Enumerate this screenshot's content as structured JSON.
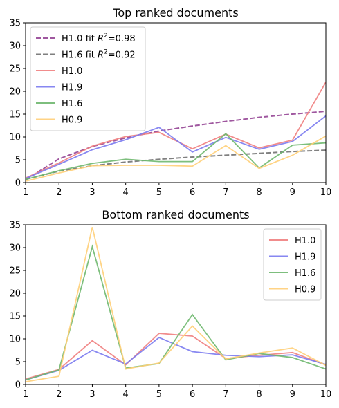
{
  "chart_data": [
    {
      "type": "line",
      "title": "Top ranked documents",
      "xlabel": "",
      "ylabel": "",
      "xlim": [
        1,
        10
      ],
      "ylim": [
        0,
        35
      ],
      "xticks": [
        1,
        2,
        3,
        4,
        5,
        6,
        7,
        8,
        9,
        10
      ],
      "yticks": [
        0,
        5,
        10,
        15,
        20,
        25,
        30,
        35
      ],
      "grid": false,
      "legend": "top-left",
      "x": [
        1,
        2,
        3,
        4,
        5,
        6,
        7,
        8,
        9,
        10
      ],
      "fits": [
        {
          "name": "H1.0 fit R²=0.98",
          "name_prefix": "H1.0 fit ",
          "r2_value": "=0.98",
          "color": "#7f1f7f",
          "style": "dashed",
          "values": [
            0.6,
            5.2,
            7.9,
            9.8,
            11.3,
            12.4,
            13.4,
            14.3,
            15.0,
            15.6
          ]
        },
        {
          "name": "H1.6 fit R²=0.92",
          "name_prefix": "H1.6 fit ",
          "r2_value": "=0.92",
          "color": "#555555",
          "style": "dashed",
          "values": [
            0.7,
            2.5,
            3.7,
            4.5,
            5.1,
            5.6,
            6.0,
            6.4,
            6.8,
            7.1
          ]
        }
      ],
      "series": [
        {
          "name": "H1.0",
          "color": "#f08080",
          "values": [
            1.0,
            4.3,
            8.0,
            10.1,
            11.0,
            7.4,
            10.6,
            7.6,
            9.3,
            22.0
          ]
        },
        {
          "name": "H1.9",
          "color": "#7b7bf0",
          "values": [
            0.9,
            4.0,
            7.2,
            9.4,
            12.1,
            6.7,
            9.9,
            7.3,
            9.0,
            14.6
          ]
        },
        {
          "name": "H1.6",
          "color": "#6fb86f",
          "values": [
            0.7,
            2.6,
            4.2,
            5.1,
            4.6,
            4.6,
            10.7,
            3.2,
            8.2,
            8.7
          ]
        },
        {
          "name": "H0.9",
          "color": "#ffcf78",
          "values": [
            0.3,
            2.1,
            3.7,
            3.8,
            3.8,
            3.6,
            8.1,
            3.1,
            6.0,
            10.2
          ]
        }
      ]
    },
    {
      "type": "line",
      "title": "Bottom ranked documents",
      "xlabel": "",
      "ylabel": "",
      "xlim": [
        1,
        10
      ],
      "ylim": [
        0,
        35
      ],
      "xticks": [
        1,
        2,
        3,
        4,
        5,
        6,
        7,
        8,
        9,
        10
      ],
      "yticks": [
        0,
        5,
        10,
        15,
        20,
        25,
        30,
        35
      ],
      "grid": false,
      "legend": "top-right",
      "x": [
        1,
        2,
        3,
        4,
        5,
        6,
        7,
        8,
        9,
        10
      ],
      "series": [
        {
          "name": "H1.0",
          "color": "#f08080",
          "values": [
            1.2,
            3.3,
            9.6,
            4.3,
            11.2,
            10.6,
            5.7,
            6.4,
            7.0,
            4.3
          ]
        },
        {
          "name": "H1.9",
          "color": "#7b7bf0",
          "values": [
            1.0,
            3.1,
            7.5,
            4.5,
            10.3,
            7.2,
            6.4,
            6.1,
            6.5,
            4.4
          ]
        },
        {
          "name": "H1.6",
          "color": "#6fb86f",
          "values": [
            1.0,
            3.2,
            30.2,
            3.6,
            4.6,
            15.3,
            5.4,
            6.8,
            5.9,
            3.4
          ]
        },
        {
          "name": "H0.9",
          "color": "#ffcf78",
          "values": [
            0.6,
            1.8,
            34.5,
            3.4,
            4.7,
            12.8,
            5.6,
            6.9,
            8.0,
            4.2
          ]
        }
      ]
    }
  ]
}
